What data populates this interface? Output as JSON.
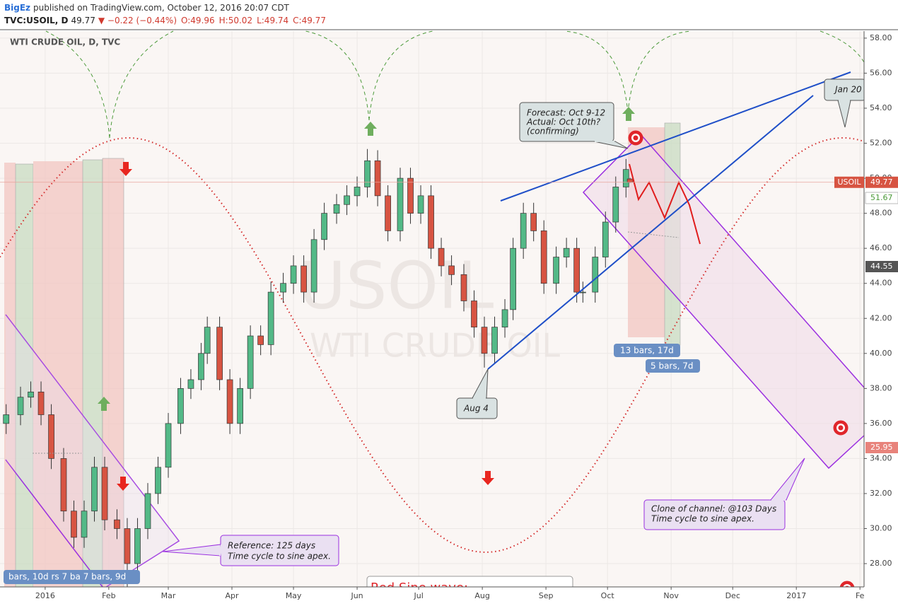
{
  "header": {
    "author": "BigEz",
    "published": "published on TradingView.com, October 12, 2016 20:07 CDT",
    "symbol": "TVC:USOIL, D",
    "last": "49.77",
    "change": "▼ −0.22 (−0.44%)",
    "ohlc": [
      "O:49.96",
      "H:50.02",
      "L:49.74",
      "C:49.77"
    ]
  },
  "chart_data": {
    "type": "candlestick",
    "title": "WTI CRUDE OIL, D, TVC",
    "watermark": [
      "USOIL",
      "WTI CRUDE OIL"
    ],
    "up_color": "#53b987",
    "down_color": "#d75442",
    "x": [
      -19,
      -12,
      -7,
      -2,
      3,
      9,
      14,
      19,
      24,
      29,
      35,
      40,
      45,
      50,
      55,
      60,
      66,
      71,
      76,
      79,
      85,
      90,
      95,
      100,
      105,
      110,
      116,
      121,
      126,
      131,
      136,
      142,
      147,
      152,
      157,
      162,
      167,
      173,
      178,
      183,
      188,
      193,
      198,
      204,
      209,
      214,
      219,
      224,
      228,
      233,
      238,
      243,
      249,
      254,
      259,
      262,
      268,
      273,
      278,
      283,
      285
    ],
    "open": [
      36,
      36.5,
      37.5,
      37.8,
      36.5,
      34,
      31,
      29.5,
      31,
      33.5,
      30.5,
      30,
      28,
      30,
      32,
      33.5,
      36,
      38,
      38.5,
      40,
      41.5,
      38.5,
      36,
      38,
      41,
      40.5,
      43.5,
      44,
      45,
      43.5,
      46.5,
      48,
      48.5,
      49,
      49.5,
      51,
      49,
      47,
      50,
      48,
      49,
      46,
      45,
      44.5,
      43,
      41.5,
      40,
      41.5,
      42.5,
      46,
      48,
      47,
      44,
      45.5,
      46,
      43.5,
      43.5,
      45.5,
      47.5,
      49.5,
      49.96
    ],
    "high": [
      37.1,
      38.1,
      38.4,
      38.4,
      37.1,
      34.6,
      31.6,
      31.6,
      34.1,
      34.1,
      31.1,
      30.6,
      30.6,
      32.6,
      34.1,
      36.6,
      38.6,
      39.1,
      40.6,
      42.1,
      42.1,
      39.1,
      38.6,
      41.6,
      41.6,
      44.1,
      44.6,
      45.6,
      45.6,
      47.1,
      48.6,
      49.1,
      49.6,
      50.1,
      51.67,
      51.6,
      49.6,
      50.6,
      50.6,
      49.6,
      49.6,
      46.6,
      45.6,
      45.1,
      43.6,
      42.1,
      42.1,
      43.1,
      46.6,
      48.6,
      48.6,
      47.6,
      46.1,
      46.6,
      46.6,
      44.1,
      46.1,
      48.1,
      50.1,
      51.1,
      50.02
    ],
    "low": [
      35.4,
      35.9,
      36.9,
      35.9,
      33.4,
      30.4,
      28.9,
      28.9,
      30.4,
      29.9,
      29.4,
      26.05,
      27.4,
      29.4,
      31.4,
      32.9,
      35.4,
      37.4,
      37.9,
      39.4,
      37.9,
      35.4,
      35.4,
      37.4,
      39.9,
      39.9,
      42.9,
      43.4,
      42.9,
      42.9,
      45.9,
      47.4,
      47.9,
      48.4,
      48.9,
      48.4,
      46.4,
      46.4,
      47.4,
      47.4,
      45.4,
      44.4,
      43.9,
      42.4,
      40.9,
      39.19,
      39.4,
      40.9,
      41.9,
      45.4,
      46.4,
      43.4,
      43.4,
      44.9,
      42.9,
      42.9,
      42.9,
      44.9,
      46.9,
      48.9,
      49.74
    ],
    "close": [
      36.5,
      37.5,
      37.8,
      36.5,
      34,
      31,
      29.5,
      31,
      33.5,
      30.5,
      30,
      28,
      30,
      32,
      33.5,
      36,
      38,
      38.5,
      40,
      41.5,
      38.5,
      36,
      38,
      41,
      40.5,
      43.5,
      44,
      45,
      43.5,
      46.5,
      48,
      48.5,
      49,
      49.5,
      51,
      49,
      47,
      50,
      48,
      49,
      46,
      45,
      44.5,
      43,
      41.5,
      40,
      41.5,
      42.5,
      46,
      48,
      47,
      44,
      45.5,
      46,
      43.5,
      43.5,
      45.5,
      47.5,
      49.5,
      50.5,
      49.77
    ],
    "xlim": [
      -22,
      399
    ],
    "xticks": [
      {
        "value": 0,
        "label": "2016"
      },
      {
        "value": 31,
        "label": "Feb"
      },
      {
        "value": 60,
        "label": "Mar"
      },
      {
        "value": 91,
        "label": "Apr"
      },
      {
        "value": 121,
        "label": "May"
      },
      {
        "value": 152,
        "label": "Jun"
      },
      {
        "value": 182,
        "label": "Jul"
      },
      {
        "value": 213,
        "label": "Aug"
      },
      {
        "value": 244,
        "label": "Sep"
      },
      {
        "value": 274,
        "label": "Oct"
      },
      {
        "value": 305,
        "label": "Nov"
      },
      {
        "value": 335,
        "label": "Dec"
      },
      {
        "value": 366,
        "label": "2017"
      },
      {
        "value": 397,
        "label": "Fe"
      }
    ],
    "ylim": [
      26.67,
      58.4
    ],
    "yticks": [
      {
        "value": 28,
        "label": "28.00"
      },
      {
        "value": 30,
        "label": "30.00"
      },
      {
        "value": 32,
        "label": "32.00"
      },
      {
        "value": 34,
        "label": "34.00"
      },
      {
        "value": 36,
        "label": "36.00"
      },
      {
        "value": 38,
        "label": "38.00"
      },
      {
        "value": 40,
        "label": "40.00"
      },
      {
        "value": 42,
        "label": "42.00"
      },
      {
        "value": 44,
        "label": "44.00"
      },
      {
        "value": 46,
        "label": "46.00"
      },
      {
        "value": 48,
        "label": "48.00"
      },
      {
        "value": 50,
        "label": "50.00"
      },
      {
        "value": 52,
        "label": "52.00"
      },
      {
        "value": 54,
        "label": "54.00"
      },
      {
        "value": 56,
        "label": "56.00"
      },
      {
        "value": 58,
        "label": "58.00"
      }
    ],
    "grid": true,
    "symbol_tag": "USOIL",
    "price_tags": [
      49.77,
      51.67,
      44.55,
      25.95
    ],
    "annotations": [
      [
        "Forecast: Oct 9-12",
        "Actual: Oct 10th?",
        " (confirming)"
      ],
      [
        "Jan 20"
      ],
      [
        "Aug 4"
      ],
      [
        "Reference: 125 days",
        "Time cycle to sine apex."
      ],
      [
        "Clone of channel: @103 Days",
        "Time cycle to sine apex."
      ],
      [
        "13 bars, 17d"
      ],
      [
        "5 bars, 7d"
      ],
      [
        "bars, 10d  rs  7 ba  7 bars, 9d"
      ],
      [
        "Red Sine wave:"
      ]
    ]
  }
}
